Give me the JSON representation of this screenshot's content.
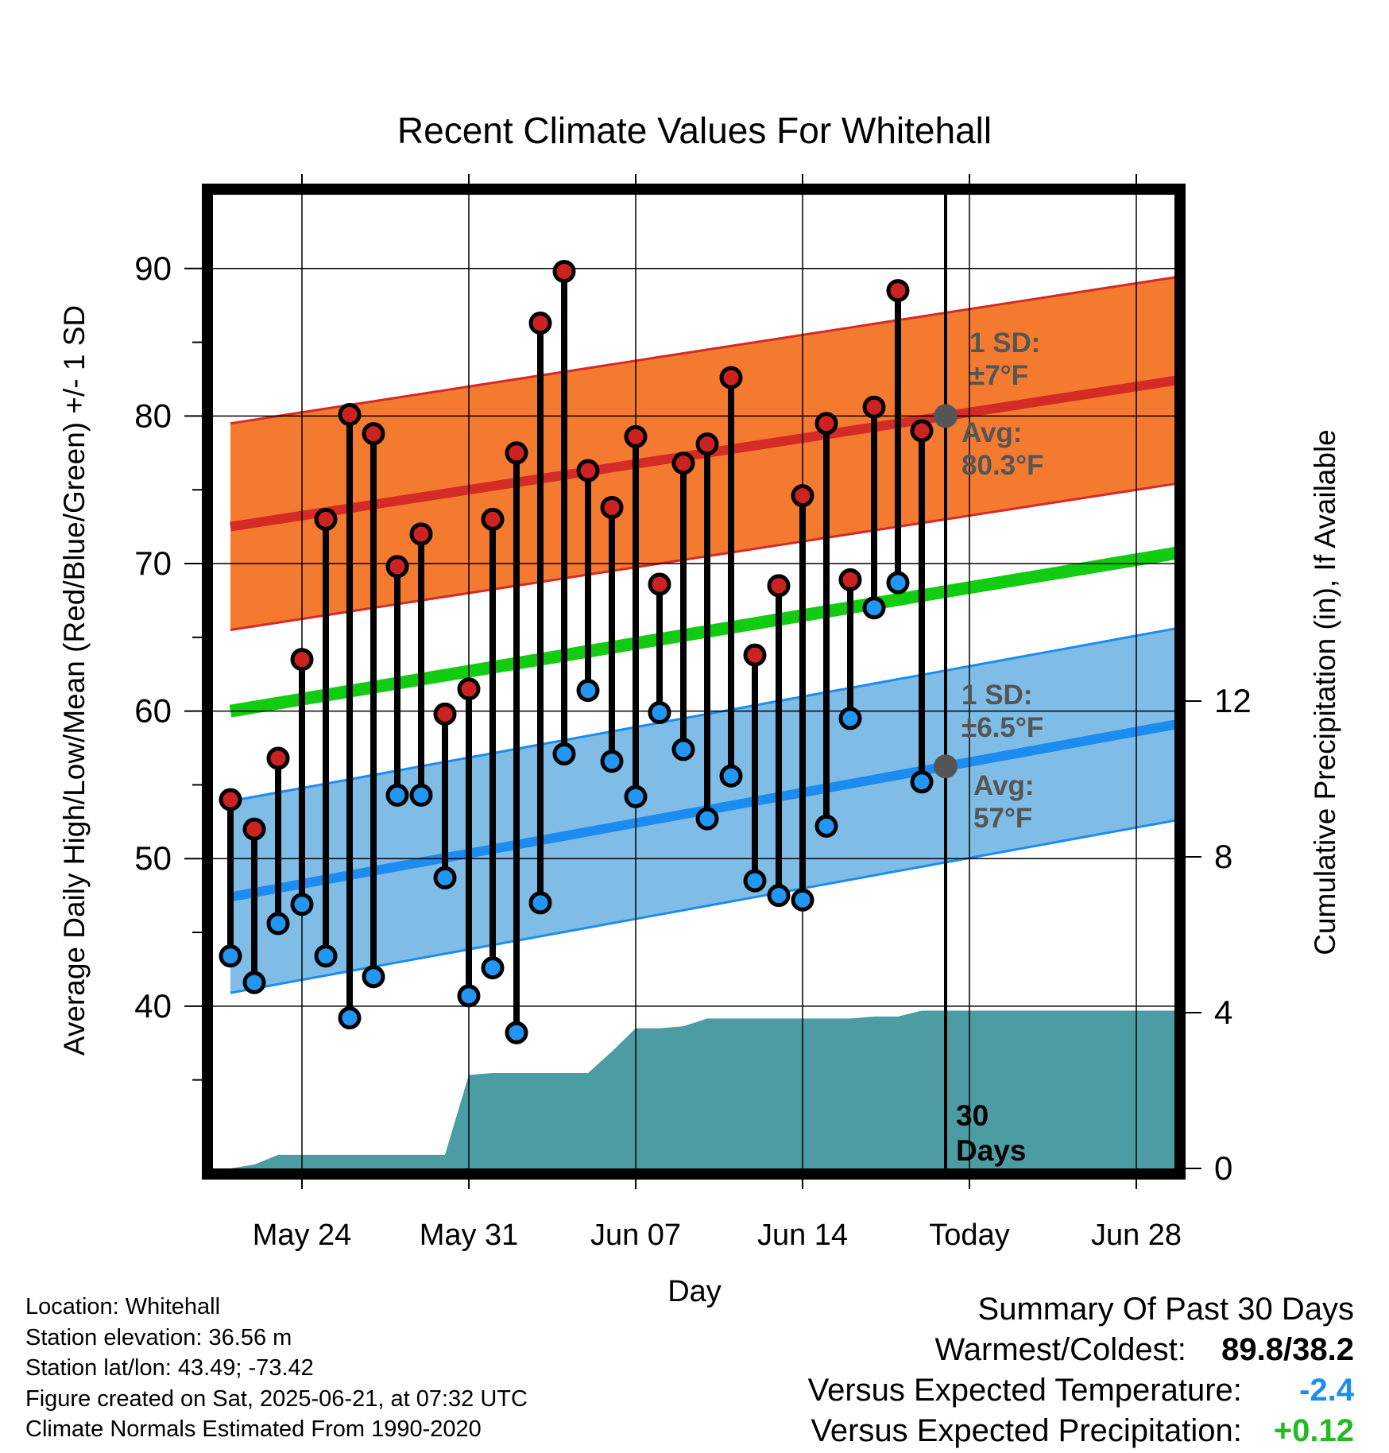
{
  "chart_data": {
    "type": "line",
    "title": "Recent Climate Values For Whitehall",
    "xlabel": "Day",
    "ylabel": "Average Daily High/Low/Mean (Red/Blue/Green) +/- 1 SD",
    "y2label": "Cumulative Precipitation (in), If Available",
    "ylim": [
      29,
      95
    ],
    "y2lim": [
      0,
      25
    ],
    "y_ticks": [
      40,
      50,
      60,
      70,
      80,
      90
    ],
    "y2_ticks": [
      0,
      4,
      8,
      12
    ],
    "x_tick_labels": [
      "May 24",
      "May 31",
      "Jun 07",
      "Jun 14",
      "Today",
      "Jun 28"
    ],
    "today_marker": {
      "label_line1": "30",
      "label_line2": "Days"
    },
    "days": [
      "May 21",
      "May 22",
      "May 23",
      "May 24",
      "May 25",
      "May 26",
      "May 27",
      "May 28",
      "May 29",
      "May 30",
      "May 31",
      "Jun 01",
      "Jun 02",
      "Jun 03",
      "Jun 04",
      "Jun 05",
      "Jun 06",
      "Jun 07",
      "Jun 08",
      "Jun 09",
      "Jun 10",
      "Jun 11",
      "Jun 12",
      "Jun 13",
      "Jun 14",
      "Jun 15",
      "Jun 16",
      "Jun 17",
      "Jun 18",
      "Jun 19",
      "Jun 20",
      "Jun 21",
      "Jun 22",
      "Jun 23",
      "Jun 24",
      "Jun 25",
      "Jun 26",
      "Jun 27",
      "Jun 28",
      "Jun 29",
      "Jun 30"
    ],
    "observed_high": [
      54.0,
      52.0,
      56.8,
      63.5,
      73.0,
      80.1,
      78.8,
      69.8,
      72.0,
      59.8,
      61.5,
      73.0,
      77.5,
      86.3,
      89.8,
      76.3,
      73.8,
      78.6,
      68.6,
      76.8,
      78.1,
      82.6,
      63.8,
      68.5,
      74.6,
      79.5,
      68.9,
      80.6,
      88.5,
      79.0
    ],
    "observed_low": [
      43.4,
      41.6,
      45.6,
      46.9,
      43.4,
      39.2,
      42.0,
      54.3,
      54.3,
      48.7,
      40.7,
      42.6,
      38.2,
      47.0,
      57.1,
      61.4,
      56.6,
      54.2,
      59.9,
      57.4,
      52.7,
      55.6,
      48.5,
      47.5,
      47.2,
      52.2,
      59.5,
      67.0,
      68.7,
      55.2
    ],
    "normal_high_range": [
      72.5,
      82.5
    ],
    "normal_low_range": [
      47.4,
      59.2
    ],
    "normal_mean_range": [
      60.0,
      70.8
    ],
    "high_sd_f": 7,
    "low_sd_f": 6.5,
    "cumulative_precip_in": [
      0.0,
      0.1,
      0.35,
      0.35,
      0.35,
      0.35,
      0.35,
      0.35,
      0.35,
      0.35,
      2.4,
      2.45,
      2.45,
      2.45,
      2.45,
      2.45,
      3.0,
      3.6,
      3.6,
      3.65,
      3.85,
      3.85,
      3.85,
      3.85,
      3.85,
      3.85,
      3.85,
      3.9,
      3.9,
      4.05,
      4.05,
      4.05,
      4.05,
      4.05,
      4.05,
      4.05,
      4.05,
      4.05,
      4.05,
      4.05,
      4.05
    ],
    "grid": true,
    "colors": {
      "high_band": "#f47a30",
      "high_line": "#d42b27",
      "low_band": "#7fbde6",
      "low_line": "#1d8cf0",
      "mean_line": "#11cc11",
      "precip": "#4b9ca3",
      "high_marker": "#cc2222",
      "low_marker": "#2196f3",
      "avg_dot": "#555555",
      "annotation_text": "#555555"
    }
  },
  "annotations": {
    "high_sd_line1": "1 SD:",
    "high_sd_line2": "±7°F",
    "high_avg_line1": "Avg:",
    "high_avg_line2": "80.3°F",
    "low_sd_line1": "1 SD:",
    "low_sd_line2": "±6.5°F",
    "low_avg_line1": "Avg:",
    "low_avg_line2": "57°F"
  },
  "station_info": {
    "location": "Location: Whitehall",
    "elevation": "Station elevation: 36.56 m",
    "latlon": "Station lat/lon: 43.49; -73.42",
    "created": "Figure created on Sat, 2025-06-21, at 07:32 UTC",
    "normals": "Climate Normals Estimated From 1990-2020"
  },
  "summary": {
    "title": "Summary Of Past 30 Days",
    "warmest_coldest_label": "Warmest/Coldest:",
    "warmest_coldest_value": "89.8/38.2",
    "temp_label": "Versus Expected Temperature:",
    "temp_value": "-2.4",
    "temp_color": "#1d8cf0",
    "precip_label": "Versus Expected Precipitation:",
    "precip_value": "+0.12",
    "precip_color": "#22bb22"
  }
}
